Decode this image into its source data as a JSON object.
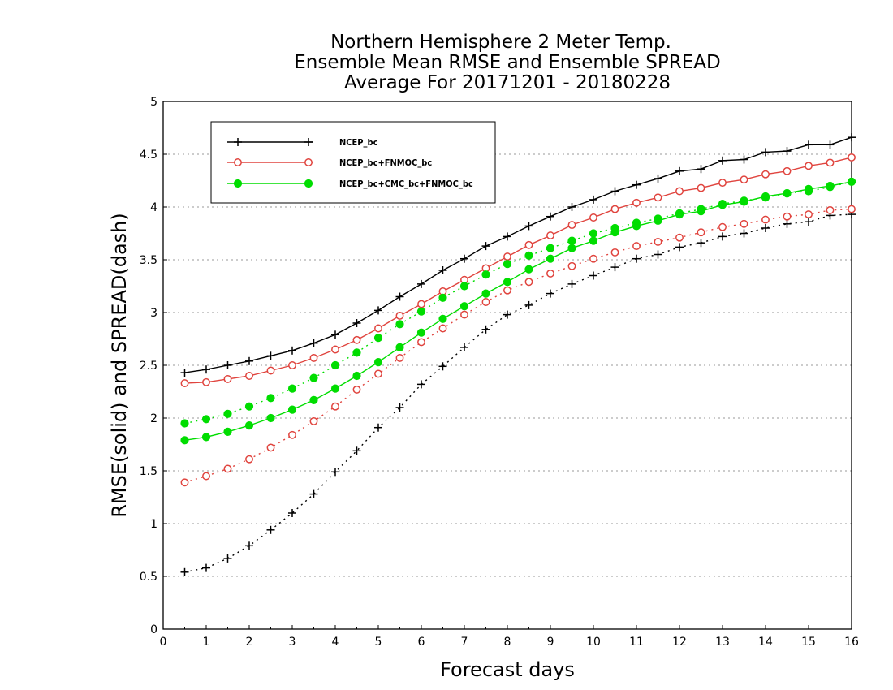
{
  "chart_data": {
    "type": "line",
    "title": [
      "Northern Hemisphere 2 Meter Temp.",
      "Ensemble Mean RMSE and Ensemble SPREAD",
      "Average For 20171201 - 20180228"
    ],
    "xlabel": "Forecast days",
    "ylabel": "RMSE(solid) and SPREAD(dash)",
    "xlim": [
      0,
      16
    ],
    "ylim": [
      0,
      5
    ],
    "xticks": [
      0,
      1,
      2,
      3,
      4,
      5,
      6,
      7,
      8,
      9,
      10,
      11,
      12,
      13,
      14,
      15,
      16
    ],
    "yticks": [
      0,
      0.5,
      1,
      1.5,
      2,
      2.5,
      3,
      3.5,
      4,
      4.5,
      5
    ],
    "ytick_labels": [
      "0",
      "0.5",
      "1",
      "1.5",
      "2",
      "2.5",
      "3",
      "3.5",
      "4",
      "4.5",
      "5"
    ],
    "grid": true,
    "legend_position": "top-left",
    "x": [
      0.5,
      1,
      1.5,
      2,
      2.5,
      3,
      3.5,
      4,
      4.5,
      5,
      5.5,
      6,
      6.5,
      7,
      7.5,
      8,
      8.5,
      9,
      9.5,
      10,
      10.5,
      11,
      11.5,
      12,
      12.5,
      13,
      13.5,
      14,
      14.5,
      15,
      15.5,
      16
    ],
    "series": [
      {
        "name": "NCEP_bc",
        "color": "#000000",
        "marker": "plus",
        "rmse": [
          2.43,
          2.46,
          2.5,
          2.54,
          2.59,
          2.64,
          2.71,
          2.79,
          2.9,
          3.02,
          3.15,
          3.27,
          3.4,
          3.51,
          3.63,
          3.72,
          3.82,
          3.91,
          4.0,
          4.07,
          4.15,
          4.21,
          4.27,
          4.34,
          4.36,
          4.44,
          4.45,
          4.52,
          4.53,
          4.59,
          4.59,
          4.66
        ],
        "spread": [
          0.54,
          0.58,
          0.67,
          0.79,
          0.94,
          1.1,
          1.28,
          1.49,
          1.69,
          1.91,
          2.1,
          2.32,
          2.49,
          2.67,
          2.84,
          2.98,
          3.07,
          3.18,
          3.27,
          3.35,
          3.43,
          3.51,
          3.55,
          3.62,
          3.66,
          3.72,
          3.75,
          3.8,
          3.84,
          3.86,
          3.92,
          3.93
        ]
      },
      {
        "name": "NCEP_bc+FNMOC_bc",
        "color": "#e0443e",
        "marker": "open-circle",
        "rmse": [
          2.33,
          2.34,
          2.37,
          2.4,
          2.45,
          2.5,
          2.57,
          2.65,
          2.74,
          2.85,
          2.97,
          3.08,
          3.2,
          3.31,
          3.42,
          3.53,
          3.64,
          3.73,
          3.83,
          3.9,
          3.98,
          4.04,
          4.09,
          4.15,
          4.18,
          4.23,
          4.26,
          4.31,
          4.34,
          4.39,
          4.42,
          4.47
        ],
        "spread": [
          1.39,
          1.45,
          1.52,
          1.61,
          1.72,
          1.84,
          1.97,
          2.11,
          2.27,
          2.42,
          2.57,
          2.72,
          2.85,
          2.98,
          3.1,
          3.21,
          3.29,
          3.37,
          3.44,
          3.51,
          3.57,
          3.63,
          3.67,
          3.71,
          3.76,
          3.81,
          3.84,
          3.88,
          3.91,
          3.93,
          3.97,
          3.98
        ]
      },
      {
        "name": "NCEP_bc+CMC_bc+FNMOC_bc",
        "color": "#00dd00",
        "marker": "filled-circle",
        "rmse": [
          1.79,
          1.82,
          1.87,
          1.93,
          2.0,
          2.08,
          2.17,
          2.28,
          2.4,
          2.53,
          2.67,
          2.81,
          2.94,
          3.06,
          3.18,
          3.29,
          3.41,
          3.51,
          3.61,
          3.68,
          3.76,
          3.82,
          3.87,
          3.93,
          3.96,
          4.02,
          4.05,
          4.1,
          4.13,
          4.17,
          4.2,
          4.24
        ],
        "spread": [
          1.95,
          1.99,
          2.04,
          2.11,
          2.19,
          2.28,
          2.38,
          2.5,
          2.62,
          2.76,
          2.89,
          3.01,
          3.14,
          3.25,
          3.36,
          3.46,
          3.54,
          3.61,
          3.68,
          3.75,
          3.8,
          3.85,
          3.89,
          3.94,
          3.98,
          4.03,
          4.06,
          4.09,
          4.13,
          4.15,
          4.19,
          4.24
        ]
      }
    ]
  }
}
